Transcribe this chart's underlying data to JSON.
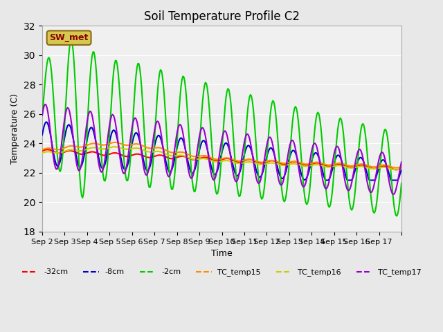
{
  "title": "Soil Temperature Profile C2",
  "xlabel": "Time",
  "ylabel": "Temperature (C)",
  "ylim": [
    18,
    32
  ],
  "yticks": [
    18,
    20,
    22,
    24,
    26,
    28,
    30,
    32
  ],
  "background_color": "#e8e8e8",
  "plot_bg_color": "#f0f0f0",
  "annotation_text": "SW_met",
  "annotation_bg": "#d4c84e",
  "annotation_border": "#8b6914",
  "annotation_text_color": "#8b0000",
  "x_tick_positions": [
    0,
    1,
    2,
    3,
    4,
    5,
    6,
    7,
    8,
    9,
    10,
    11,
    12,
    13,
    14,
    15,
    16
  ],
  "x_tick_labels": [
    "Sep 2",
    "Sep 3",
    "Sep 4",
    "Sep 5",
    "Sep 6",
    "Sep 7",
    "Sep 8",
    "Sep 9",
    "Sep 10",
    "Sep 11",
    "Sep 12",
    "Sep 13",
    "Sep 14",
    "Sep 15",
    "Sep 16",
    "Sep 17",
    ""
  ],
  "series_colors": {
    "-32cm": "#ff0000",
    "-8cm": "#0000cc",
    "-2cm": "#00cc00",
    "TC_temp15": "#ff8c00",
    "TC_temp16": "#cccc00",
    "TC_temp17": "#9900cc"
  },
  "series_linewidth": 1.5
}
